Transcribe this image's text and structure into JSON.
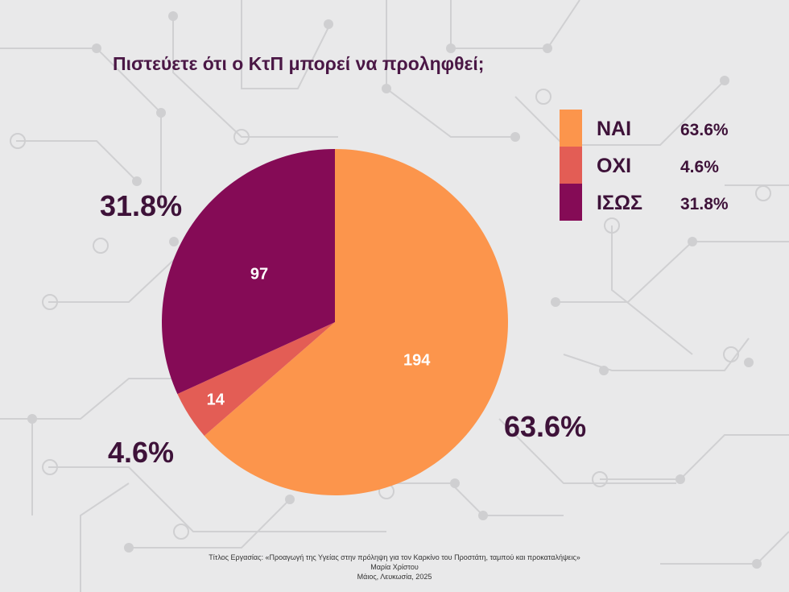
{
  "chart_data": {
    "type": "pie",
    "title": "Πιστεύετε ότι ο ΚτΠ μπορεί να προληφθεί;",
    "categories": [
      "ΝΑΙ",
      "ΟΧΙ",
      "ΙΣΩΣ"
    ],
    "values": [
      194,
      14,
      97
    ],
    "percent_labels": [
      "63.6%",
      "4.6%",
      "31.8%"
    ],
    "colors": [
      "#fc954c",
      "#e35d55",
      "#850b56"
    ],
    "legend_position": "top-right"
  },
  "footer": {
    "line1": "Τίτλος Εργασίας: «Προαγωγή της Υγείας στην πρόληψη για τον Καρκίνο του Προστάτη, ταμπού και προκαταλήψεις»",
    "line2": "Μαρία Χρίστου",
    "line3": "Μάιος, Λευκωσία, 2025"
  }
}
